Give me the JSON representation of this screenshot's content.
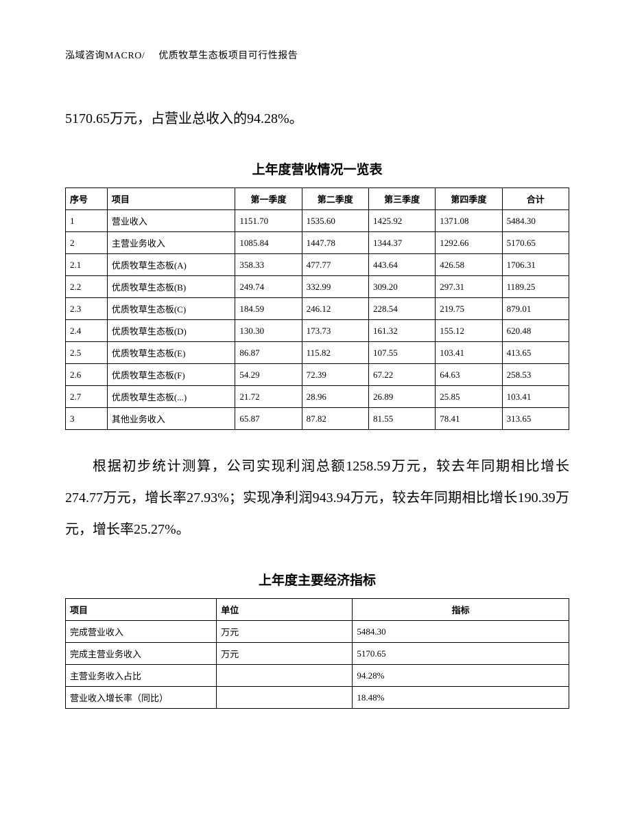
{
  "header": {
    "left": "泓域咨询MACRO/",
    "right": "优质牧草生态板项目可行性报告"
  },
  "intro_text": "5170.65万元，占营业总收入的94.28%。",
  "table1": {
    "title": "上年度营收情况一览表",
    "columns": [
      "序号",
      "项目",
      "第一季度",
      "第二季度",
      "第三季度",
      "第四季度",
      "合计"
    ],
    "rows": [
      [
        "1",
        "营业收入",
        "1151.70",
        "1535.60",
        "1425.92",
        "1371.08",
        "5484.30"
      ],
      [
        "2",
        "主营业务收入",
        "1085.84",
        "1447.78",
        "1344.37",
        "1292.66",
        "5170.65"
      ],
      [
        "2.1",
        "优质牧草生态板(A)",
        "358.33",
        "477.77",
        "443.64",
        "426.58",
        "1706.31"
      ],
      [
        "2.2",
        "优质牧草生态板(B)",
        "249.74",
        "332.99",
        "309.20",
        "297.31",
        "1189.25"
      ],
      [
        "2.3",
        "优质牧草生态板(C)",
        "184.59",
        "246.12",
        "228.54",
        "219.75",
        "879.01"
      ],
      [
        "2.4",
        "优质牧草生态板(D)",
        "130.30",
        "173.73",
        "161.32",
        "155.12",
        "620.48"
      ],
      [
        "2.5",
        "优质牧草生态板(E)",
        "86.87",
        "115.82",
        "107.55",
        "103.41",
        "413.65"
      ],
      [
        "2.6",
        "优质牧草生态板(F)",
        "54.29",
        "72.39",
        "67.22",
        "64.63",
        "258.53"
      ],
      [
        "2.7",
        "优质牧草生态板(...)",
        "21.72",
        "28.96",
        "26.89",
        "25.85",
        "103.41"
      ],
      [
        "3",
        "其他业务收入",
        "65.87",
        "87.82",
        "81.55",
        "78.41",
        "313.65"
      ]
    ]
  },
  "mid_text": "根据初步统计测算，公司实现利润总额1258.59万元，较去年同期相比增长274.77万元，增长率27.93%；实现净利润943.94万元，较去年同期相比增长190.39万元，增长率25.27%。",
  "table2": {
    "title": "上年度主要经济指标",
    "columns": [
      "项目",
      "单位",
      "指标"
    ],
    "rows": [
      [
        "完成营业收入",
        "万元",
        "5484.30"
      ],
      [
        "完成主营业务收入",
        "万元",
        "5170.65"
      ],
      [
        "主营业务收入占比",
        "",
        "94.28%"
      ],
      [
        "营业收入增长率（同比）",
        "",
        "18.48%"
      ]
    ]
  }
}
